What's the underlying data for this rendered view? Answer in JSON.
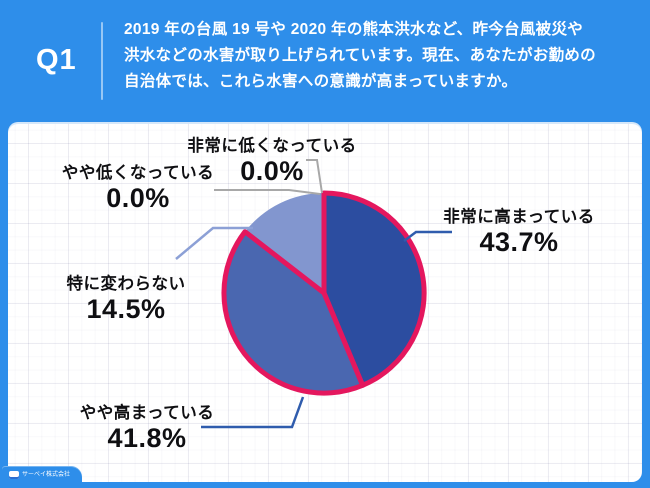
{
  "header": {
    "question_no": "Q1",
    "question_lines": [
      "2019 年の台風 19 号や 2020 年の熊本洪水など、昨今台風被災や",
      "洪水などの水害が取り上げられています。現在、あなたがお勤めの",
      "自治体では、これら水害への意識が高まっていますか。"
    ]
  },
  "chart_data": {
    "type": "pie",
    "title": "",
    "start_angle_deg": 0,
    "direction": "clockwise",
    "grid_background": true,
    "legend_position": "callout-labels",
    "slices": [
      {
        "name": "非常に高まっている",
        "value": 43.7,
        "pct": "43.7%",
        "color": "#2C4DA0",
        "outlined": true,
        "leader_color": "#2F5CAD"
      },
      {
        "name": "やや高まっている",
        "value": 41.8,
        "pct": "41.8%",
        "color": "#4A67B0",
        "outlined": true,
        "leader_color": "#2F5CAD"
      },
      {
        "name": "特に変わらない",
        "value": 14.5,
        "pct": "14.5%",
        "color": "#8296CF",
        "outlined": false,
        "leader_color": "#8CA0D6"
      },
      {
        "name": "やや低くなっている",
        "value": 0.0,
        "pct": "0.0%",
        "color": null,
        "outlined": false,
        "leader_color": "#A8A8A8"
      },
      {
        "name": "非常に低くなっている",
        "value": 0.0,
        "pct": "0.0%",
        "color": null,
        "outlined": false,
        "leader_color": "#A8A8A8"
      }
    ],
    "outline_color": "#E4175E"
  },
  "colors": {
    "frame_blue": "#2E8EEA",
    "panel_white": "#FFFFFF",
    "pie_outline_pink": "#E4175E",
    "label_text": "#0F0F12"
  },
  "watermark": {
    "text": "サーベイ株式会社"
  }
}
